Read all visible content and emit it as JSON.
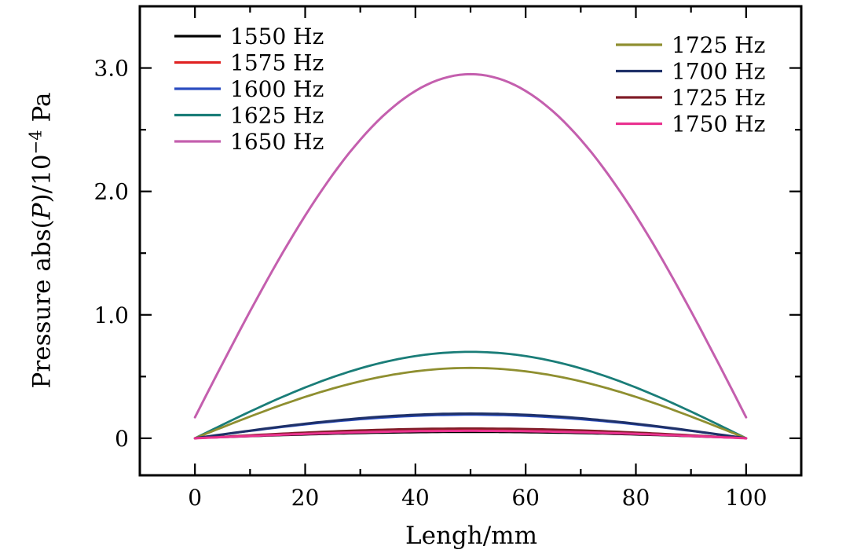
{
  "labels": {
    "x": "Lengh/mm",
    "y_prefix": "Pressure abs(",
    "y_var": "P",
    "y_mid": ")/10",
    "y_exp": "−4",
    "y_unit": " Pa"
  },
  "chart_data": {
    "type": "line",
    "title": "",
    "xlabel": "Lengh/mm",
    "ylabel": "Pressure abs(P)/10⁻⁴ Pa",
    "xlim": [
      -10,
      110
    ],
    "ylim": [
      -0.3,
      3.5
    ],
    "x_ticks_major": [
      0,
      20,
      40,
      60,
      80,
      100
    ],
    "x_ticks_minor": [
      10,
      30,
      50,
      70,
      90
    ],
    "y_ticks_major": [
      0,
      1.0,
      2.0,
      3.0
    ],
    "y_tick_labels": [
      "0",
      "1.0",
      "2.0",
      "3.0"
    ],
    "y_ticks_minor": [
      0.5,
      1.5,
      2.5,
      3.5
    ],
    "grid": false,
    "legend_position": "inside-top, two columns",
    "x_sample": [
      0,
      10,
      20,
      30,
      40,
      50,
      60,
      70,
      80,
      90,
      100
    ],
    "series": [
      {
        "name": "1550 Hz",
        "color": "#000000",
        "legend_column": 1,
        "base": 0,
        "peak": 0.05,
        "width": 2.4,
        "values": [
          0,
          0.02,
          0.03,
          0.04,
          0.05,
          0.05,
          0.05,
          0.04,
          0.03,
          0.02,
          0
        ]
      },
      {
        "name": "1575 Hz",
        "color": "#e02222",
        "legend_column": 1,
        "base": 0,
        "peak": 0.07,
        "width": 2.4,
        "values": [
          0,
          0.02,
          0.04,
          0.06,
          0.07,
          0.07,
          0.07,
          0.06,
          0.04,
          0.02,
          0
        ]
      },
      {
        "name": "1600 Hz",
        "color": "#2a4cc0",
        "legend_column": 1,
        "base": 0,
        "peak": 0.19,
        "width": 2.6,
        "values": [
          0,
          0.06,
          0.11,
          0.15,
          0.18,
          0.19,
          0.18,
          0.15,
          0.11,
          0.06,
          0
        ]
      },
      {
        "name": "1625 Hz",
        "color": "#1a7d78",
        "legend_column": 1,
        "base": 0,
        "peak": 0.7,
        "width": 2.8,
        "values": [
          0,
          0.22,
          0.41,
          0.57,
          0.67,
          0.7,
          0.67,
          0.57,
          0.41,
          0.22,
          0
        ]
      },
      {
        "name": "1650 Hz",
        "color": "#c45fae",
        "legend_column": 1,
        "base": 0.17,
        "peak": 2.95,
        "width": 3.0,
        "values": [
          0.17,
          1.03,
          1.8,
          2.42,
          2.81,
          2.95,
          2.81,
          2.42,
          1.8,
          1.03,
          0.17
        ]
      },
      {
        "name": "1725 Hz",
        "color": "#8f8f30",
        "legend_column": 2,
        "base": 0,
        "peak": 0.57,
        "width": 2.8,
        "values": [
          0,
          0.18,
          0.34,
          0.46,
          0.54,
          0.57,
          0.54,
          0.46,
          0.34,
          0.18,
          0
        ]
      },
      {
        "name": "1700 Hz",
        "color": "#1f3168",
        "legend_column": 2,
        "base": 0,
        "peak": 0.2,
        "width": 3.0,
        "values": [
          0,
          0.06,
          0.12,
          0.16,
          0.19,
          0.2,
          0.19,
          0.16,
          0.12,
          0.06,
          0
        ]
      },
      {
        "name": "1725 Hz",
        "color": "#801c28",
        "legend_column": 2,
        "base": 0,
        "peak": 0.08,
        "width": 2.6,
        "values": [
          0,
          0.02,
          0.05,
          0.06,
          0.08,
          0.08,
          0.08,
          0.06,
          0.05,
          0.02,
          0
        ]
      },
      {
        "name": "1750 Hz",
        "color": "#ea3390",
        "legend_column": 2,
        "base": 0,
        "peak": 0.06,
        "width": 3.0,
        "values": [
          0,
          0.02,
          0.04,
          0.05,
          0.06,
          0.06,
          0.06,
          0.05,
          0.04,
          0.02,
          0
        ]
      }
    ]
  }
}
